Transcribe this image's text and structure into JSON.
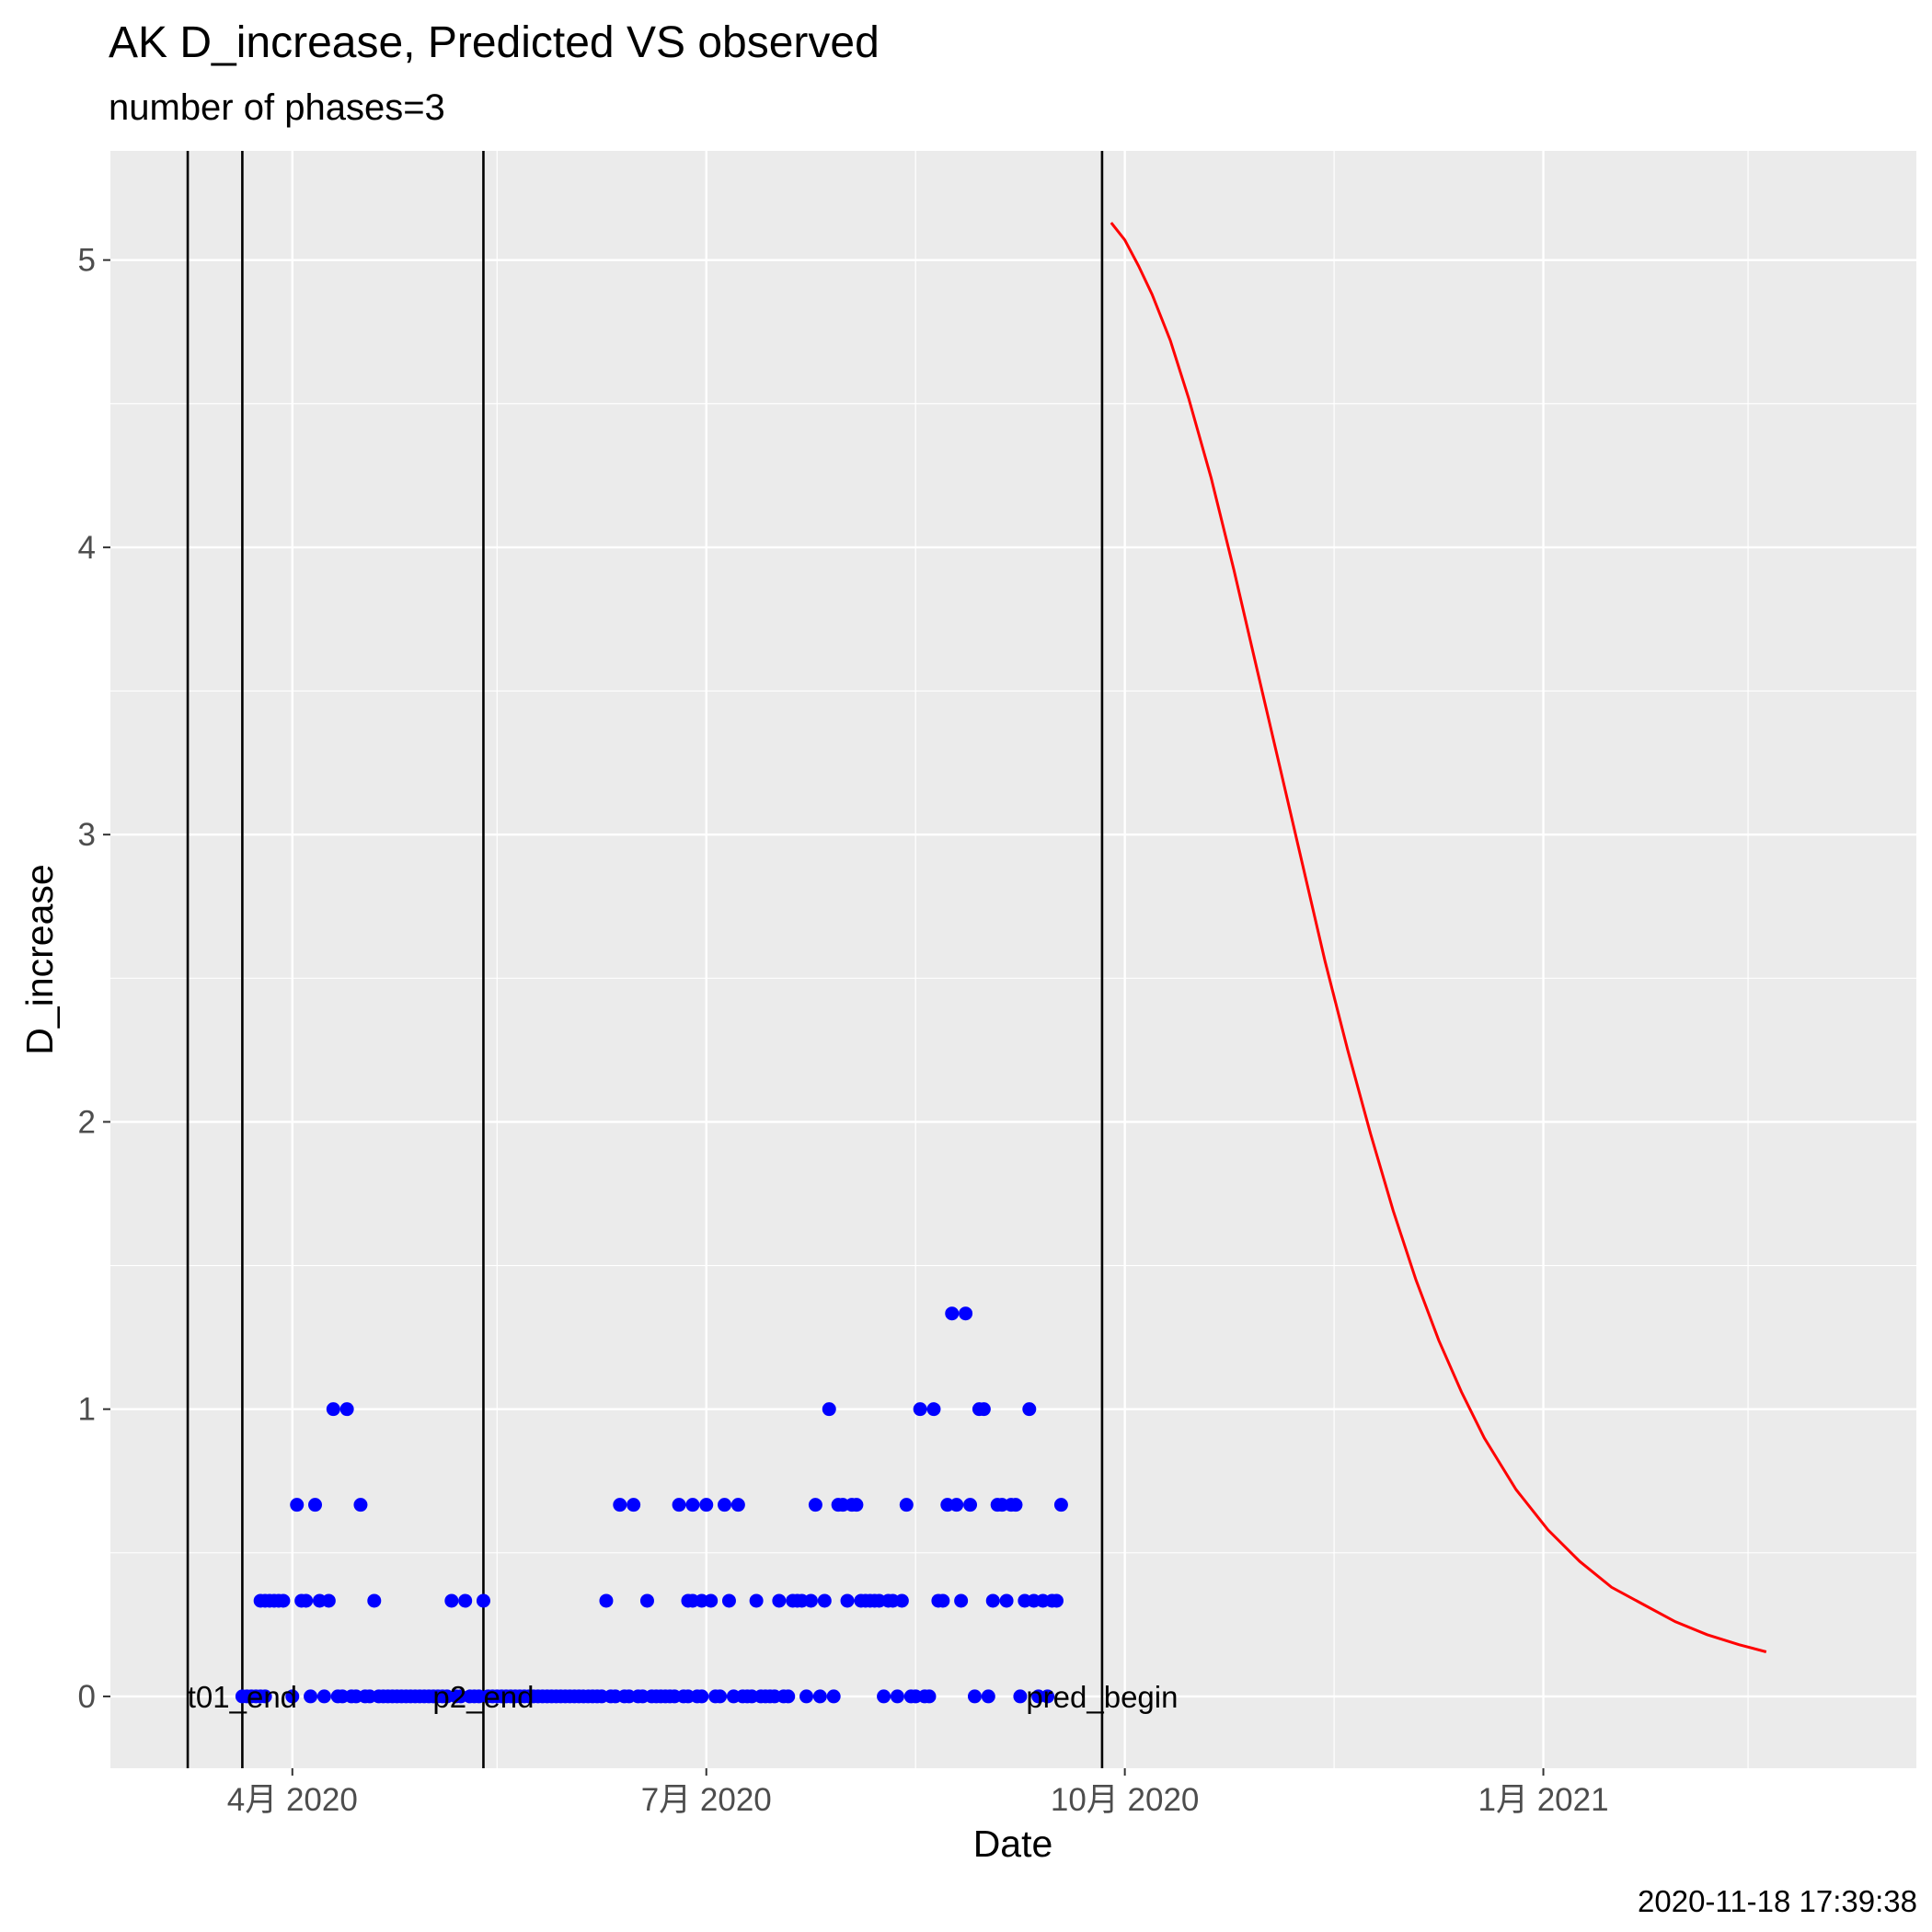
{
  "chart_data": {
    "type": "scatter",
    "title": "AK D_increase, Predicted VS observed",
    "subtitle": "number of phases=3",
    "xlabel": "Date",
    "ylabel": "D_increase",
    "caption": "2020-11-18 17:39:38",
    "xlim": [
      "2020-02-21",
      "2021-03-24"
    ],
    "ylim": [
      -0.25,
      5.38
    ],
    "x_ticks": [
      {
        "date": "2020-04-01",
        "label": "4月 2020"
      },
      {
        "date": "2020-07-01",
        "label": "7月 2020"
      },
      {
        "date": "2020-10-01",
        "label": "10月 2020"
      },
      {
        "date": "2021-01-01",
        "label": "1月 2021"
      }
    ],
    "x_minor_ticks": [
      "2020-02-15",
      "2020-05-16",
      "2020-08-16",
      "2020-11-16",
      "2021-02-15"
    ],
    "y_ticks": [
      0,
      1,
      2,
      3,
      4,
      5
    ],
    "grid": true,
    "vlines": [
      {
        "date": "2020-03-09",
        "label": ""
      },
      {
        "date": "2020-03-21",
        "label": "t01_end"
      },
      {
        "date": "2020-05-13",
        "label": "p2_end"
      },
      {
        "date": "2020-09-26",
        "label": "pred_begin"
      }
    ],
    "series": [
      {
        "type": "scatter",
        "color": "#0000ff",
        "points": [
          [
            "2020-03-21",
            0
          ],
          [
            "2020-03-22",
            0
          ],
          [
            "2020-03-23",
            0
          ],
          [
            "2020-03-24",
            0
          ],
          [
            "2020-03-25",
            0
          ],
          [
            "2020-03-26",
            0
          ],
          [
            "2020-03-25",
            0.333
          ],
          [
            "2020-03-26",
            0.333
          ],
          [
            "2020-03-27",
            0.333
          ],
          [
            "2020-03-28",
            0.333
          ],
          [
            "2020-03-29",
            0.333
          ],
          [
            "2020-03-30",
            0.333
          ],
          [
            "2020-04-01",
            0
          ],
          [
            "2020-04-02",
            0.667
          ],
          [
            "2020-04-03",
            0.333
          ],
          [
            "2020-04-04",
            0.333
          ],
          [
            "2020-04-05",
            0
          ],
          [
            "2020-04-06",
            0.667
          ],
          [
            "2020-04-07",
            0.333
          ],
          [
            "2020-04-08",
            0
          ],
          [
            "2020-04-09",
            0.333
          ],
          [
            "2020-04-10",
            1
          ],
          [
            "2020-04-11",
            0
          ],
          [
            "2020-04-12",
            0
          ],
          [
            "2020-04-13",
            1
          ],
          [
            "2020-04-14",
            0
          ],
          [
            "2020-04-15",
            0
          ],
          [
            "2020-04-16",
            0.667
          ],
          [
            "2020-04-17",
            0
          ],
          [
            "2020-04-18",
            0
          ],
          [
            "2020-04-19",
            0.333
          ],
          [
            "2020-04-20",
            0
          ],
          [
            "2020-04-21",
            0
          ],
          [
            "2020-04-22",
            0
          ],
          [
            "2020-04-23",
            0
          ],
          [
            "2020-04-24",
            0
          ],
          [
            "2020-04-25",
            0
          ],
          [
            "2020-04-26",
            0
          ],
          [
            "2020-04-27",
            0
          ],
          [
            "2020-04-28",
            0
          ],
          [
            "2020-04-29",
            0
          ],
          [
            "2020-04-30",
            0
          ],
          [
            "2020-05-01",
            0
          ],
          [
            "2020-05-02",
            0
          ],
          [
            "2020-05-03",
            0
          ],
          [
            "2020-05-04",
            0
          ],
          [
            "2020-05-05",
            0
          ],
          [
            "2020-05-06",
            0.333
          ],
          [
            "2020-05-07",
            0
          ],
          [
            "2020-05-08",
            0
          ],
          [
            "2020-05-09",
            0.333
          ],
          [
            "2020-05-10",
            0
          ],
          [
            "2020-05-11",
            0
          ],
          [
            "2020-05-12",
            0
          ],
          [
            "2020-05-13",
            0.333
          ],
          [
            "2020-05-14",
            0
          ],
          [
            "2020-05-15",
            0
          ],
          [
            "2020-05-16",
            0
          ],
          [
            "2020-05-17",
            0
          ],
          [
            "2020-05-18",
            0
          ],
          [
            "2020-05-19",
            0
          ],
          [
            "2020-05-20",
            0
          ],
          [
            "2020-05-21",
            0
          ],
          [
            "2020-05-22",
            0
          ],
          [
            "2020-05-23",
            0
          ],
          [
            "2020-05-24",
            0
          ],
          [
            "2020-05-25",
            0
          ],
          [
            "2020-05-26",
            0
          ],
          [
            "2020-05-27",
            0
          ],
          [
            "2020-05-28",
            0
          ],
          [
            "2020-05-29",
            0
          ],
          [
            "2020-05-30",
            0
          ],
          [
            "2020-05-31",
            0
          ],
          [
            "2020-06-01",
            0
          ],
          [
            "2020-06-02",
            0
          ],
          [
            "2020-06-03",
            0
          ],
          [
            "2020-06-04",
            0
          ],
          [
            "2020-06-05",
            0
          ],
          [
            "2020-06-06",
            0
          ],
          [
            "2020-06-07",
            0
          ],
          [
            "2020-06-08",
            0
          ],
          [
            "2020-06-09",
            0.333
          ],
          [
            "2020-06-10",
            0
          ],
          [
            "2020-06-11",
            0
          ],
          [
            "2020-06-12",
            0.667
          ],
          [
            "2020-06-13",
            0
          ],
          [
            "2020-06-14",
            0
          ],
          [
            "2020-06-15",
            0.667
          ],
          [
            "2020-06-16",
            0
          ],
          [
            "2020-06-17",
            0
          ],
          [
            "2020-06-18",
            0.333
          ],
          [
            "2020-06-19",
            0
          ],
          [
            "2020-06-20",
            0
          ],
          [
            "2020-06-21",
            0
          ],
          [
            "2020-06-22",
            0
          ],
          [
            "2020-06-23",
            0
          ],
          [
            "2020-06-24",
            0
          ],
          [
            "2020-06-25",
            0.667
          ],
          [
            "2020-06-26",
            0
          ],
          [
            "2020-06-27",
            0
          ],
          [
            "2020-06-28",
            0.667
          ],
          [
            "2020-06-29",
            0
          ],
          [
            "2020-06-30",
            0
          ],
          [
            "2020-07-01",
            0.667
          ],
          [
            "2020-06-27",
            0.333
          ],
          [
            "2020-06-28",
            0.333
          ],
          [
            "2020-06-30",
            0.333
          ],
          [
            "2020-07-02",
            0.333
          ],
          [
            "2020-07-03",
            0
          ],
          [
            "2020-07-04",
            0
          ],
          [
            "2020-07-05",
            0.667
          ],
          [
            "2020-07-06",
            0.333
          ],
          [
            "2020-07-07",
            0
          ],
          [
            "2020-07-08",
            0.667
          ],
          [
            "2020-07-09",
            0
          ],
          [
            "2020-07-10",
            0
          ],
          [
            "2020-07-11",
            0
          ],
          [
            "2020-07-12",
            0.333
          ],
          [
            "2020-07-13",
            0
          ],
          [
            "2020-07-14",
            0
          ],
          [
            "2020-07-15",
            0
          ],
          [
            "2020-07-16",
            0
          ],
          [
            "2020-07-17",
            0.333
          ],
          [
            "2020-07-18",
            0
          ],
          [
            "2020-07-19",
            0
          ],
          [
            "2020-07-20",
            0.333
          ],
          [
            "2020-07-21",
            0.333
          ],
          [
            "2020-07-22",
            0.333
          ],
          [
            "2020-07-23",
            0
          ],
          [
            "2020-07-24",
            0.333
          ],
          [
            "2020-07-25",
            0.667
          ],
          [
            "2020-07-26",
            0
          ],
          [
            "2020-07-27",
            0.333
          ],
          [
            "2020-07-28",
            1
          ],
          [
            "2020-07-29",
            0
          ],
          [
            "2020-07-30",
            0.667
          ],
          [
            "2020-07-31",
            0.667
          ],
          [
            "2020-08-01",
            0.333
          ],
          [
            "2020-08-02",
            0.667
          ],
          [
            "2020-08-03",
            0.667
          ],
          [
            "2020-08-04",
            0.333
          ],
          [
            "2020-08-05",
            0.333
          ],
          [
            "2020-08-06",
            0.333
          ],
          [
            "2020-08-07",
            0.333
          ],
          [
            "2020-08-08",
            0.333
          ],
          [
            "2020-08-09",
            0
          ],
          [
            "2020-08-10",
            0.333
          ],
          [
            "2020-08-11",
            0.333
          ],
          [
            "2020-08-12",
            0
          ],
          [
            "2020-08-13",
            0.333
          ],
          [
            "2020-08-14",
            0.667
          ],
          [
            "2020-08-15",
            0
          ],
          [
            "2020-08-16",
            0
          ],
          [
            "2020-08-17",
            1
          ],
          [
            "2020-08-18",
            0
          ],
          [
            "2020-08-19",
            0
          ],
          [
            "2020-08-20",
            1
          ],
          [
            "2020-08-21",
            0.333
          ],
          [
            "2020-08-22",
            0.333
          ],
          [
            "2020-08-23",
            0.667
          ],
          [
            "2020-08-24",
            1.333
          ],
          [
            "2020-08-25",
            0.667
          ],
          [
            "2020-08-26",
            0.333
          ],
          [
            "2020-08-27",
            1.333
          ],
          [
            "2020-08-28",
            0.667
          ],
          [
            "2020-08-29",
            0
          ],
          [
            "2020-08-30",
            1
          ],
          [
            "2020-08-31",
            1
          ],
          [
            "2020-09-01",
            0
          ],
          [
            "2020-09-02",
            0.333
          ],
          [
            "2020-09-03",
            0.667
          ],
          [
            "2020-09-04",
            0.667
          ],
          [
            "2020-09-05",
            0.333
          ],
          [
            "2020-09-06",
            0.667
          ],
          [
            "2020-09-07",
            0.667
          ],
          [
            "2020-09-08",
            0
          ],
          [
            "2020-09-09",
            0.333
          ],
          [
            "2020-09-10",
            1
          ],
          [
            "2020-09-11",
            0.333
          ],
          [
            "2020-09-12",
            0
          ],
          [
            "2020-09-13",
            0.333
          ],
          [
            "2020-09-14",
            0
          ],
          [
            "2020-09-15",
            0.333
          ],
          [
            "2020-09-16",
            0.333
          ],
          [
            "2020-09-17",
            0.667
          ]
        ]
      },
      {
        "type": "line",
        "color": "#ff0000",
        "points": [
          [
            "2020-09-28",
            5.13
          ],
          [
            "2020-10-01",
            5.07
          ],
          [
            "2020-10-04",
            4.98
          ],
          [
            "2020-10-07",
            4.88
          ],
          [
            "2020-10-11",
            4.72
          ],
          [
            "2020-10-15",
            4.52
          ],
          [
            "2020-10-20",
            4.24
          ],
          [
            "2020-10-25",
            3.92
          ],
          [
            "2020-10-30",
            3.58
          ],
          [
            "2020-11-04",
            3.24
          ],
          [
            "2020-11-09",
            2.9
          ],
          [
            "2020-11-14",
            2.56
          ],
          [
            "2020-11-19",
            2.25
          ],
          [
            "2020-11-24",
            1.96
          ],
          [
            "2020-11-29",
            1.69
          ],
          [
            "2020-12-04",
            1.45
          ],
          [
            "2020-12-09",
            1.24
          ],
          [
            "2020-12-14",
            1.06
          ],
          [
            "2020-12-19",
            0.9
          ],
          [
            "2020-12-26",
            0.72
          ],
          [
            "2021-01-02",
            0.58
          ],
          [
            "2021-01-09",
            0.47
          ],
          [
            "2021-01-16",
            0.38
          ],
          [
            "2021-01-23",
            0.32
          ],
          [
            "2021-01-30",
            0.26
          ],
          [
            "2021-02-06",
            0.215
          ],
          [
            "2021-02-13",
            0.18
          ],
          [
            "2021-02-19",
            0.155
          ]
        ]
      }
    ]
  }
}
